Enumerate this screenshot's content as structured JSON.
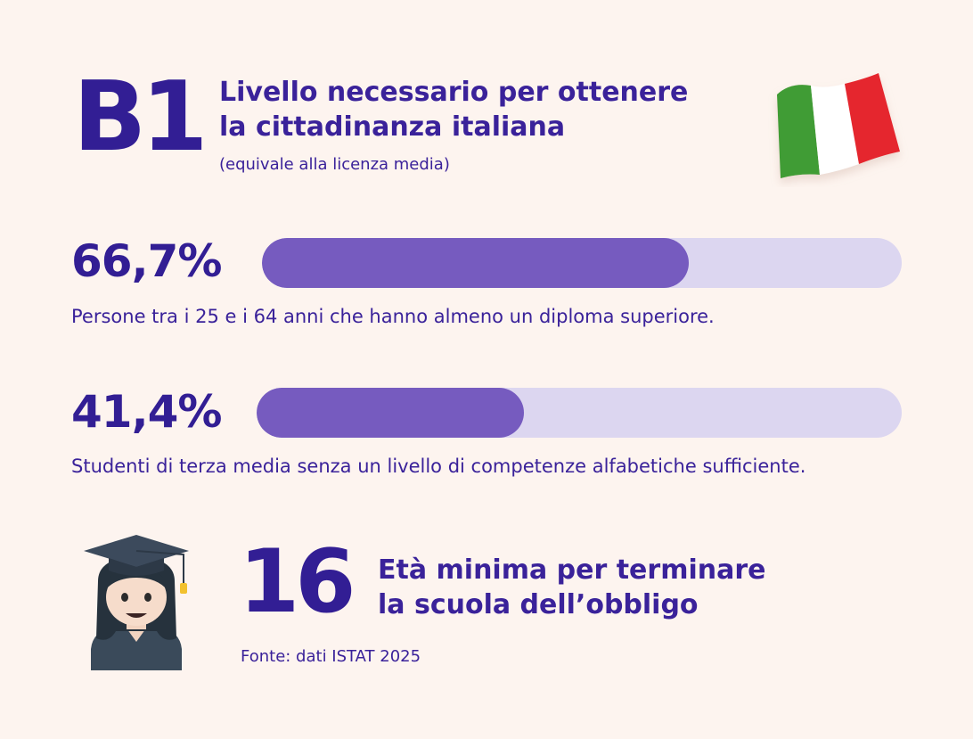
{
  "header": {
    "level": "B1",
    "title_line1": "Livello necessario per ottenere",
    "title_line2": "la cittadinanza italiana",
    "subtitle": "(equivale alla licenza media)"
  },
  "stats": [
    {
      "value_label": "66,7%",
      "value": 66.7,
      "description": "Persone tra i 25 e i 64 anni che hanno almeno un diploma superiore."
    },
    {
      "value_label": "41,4%",
      "value": 41.4,
      "description": "Studenti di terza media senza un livello di competenze alfabetiche sufficiente."
    }
  ],
  "school": {
    "age": "16",
    "title_line1": "Età minima per terminare",
    "title_line2": "la scuola dell’obbligo"
  },
  "source": "Fonte: dati ISTAT 2025",
  "icons": {
    "flag": "italian-flag-icon",
    "avatar": "graduate-woman-icon"
  },
  "colors": {
    "background": "#fdf4ef",
    "text": "#3a229a",
    "bar_fill": "#765bbf",
    "bar_track": "#dcd6f0",
    "flag_green": "#3f9c35",
    "flag_white": "#ffffff",
    "flag_red": "#e5262f"
  }
}
